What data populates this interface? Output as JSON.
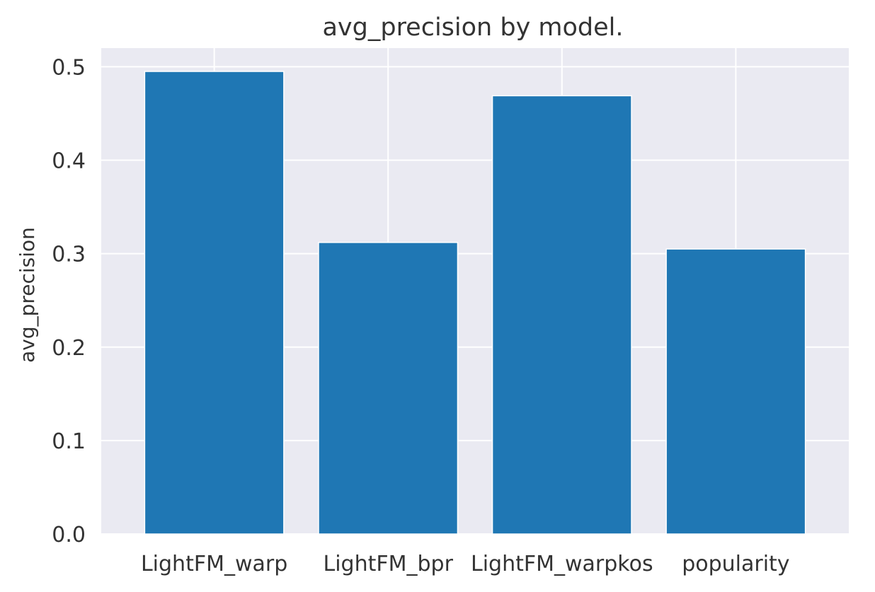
{
  "chart_data": {
    "type": "bar",
    "title": "avg_precision by model.",
    "xlabel": "",
    "ylabel": "avg_precision",
    "categories": [
      "LightFM_warp",
      "LightFM_bpr",
      "LightFM_warpkos",
      "popularity"
    ],
    "values": [
      0.495,
      0.312,
      0.469,
      0.305
    ],
    "ylim": [
      0,
      0.52
    ],
    "yticks": [
      0.0,
      0.1,
      0.2,
      0.3,
      0.4,
      0.5
    ],
    "ytick_labels": [
      "0.0",
      "0.1",
      "0.2",
      "0.3",
      "0.4",
      "0.5"
    ],
    "grid": true,
    "bar_color": "#1f77b4",
    "plot_background": "#eaeaf2",
    "grid_color": "#ffffff"
  }
}
